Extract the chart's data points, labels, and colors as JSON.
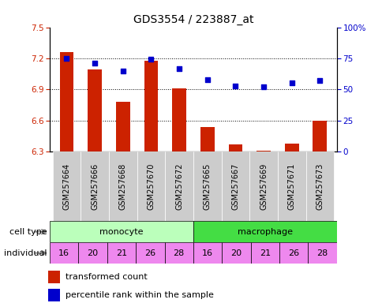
{
  "title": "GDS3554 / 223887_at",
  "samples": [
    "GSM257664",
    "GSM257666",
    "GSM257668",
    "GSM257670",
    "GSM257672",
    "GSM257665",
    "GSM257667",
    "GSM257669",
    "GSM257671",
    "GSM257673"
  ],
  "red_values": [
    7.26,
    7.09,
    6.78,
    7.18,
    6.91,
    6.54,
    6.37,
    6.31,
    6.38,
    6.6
  ],
  "blue_values": [
    75,
    71,
    65,
    74,
    67,
    58,
    53,
    52,
    55,
    57
  ],
  "ylim_left": [
    6.3,
    7.5
  ],
  "ylim_right": [
    0,
    100
  ],
  "yticks_left": [
    6.3,
    6.6,
    6.9,
    7.2,
    7.5
  ],
  "yticks_right": [
    0,
    25,
    50,
    75,
    100
  ],
  "ytick_labels_right": [
    "0",
    "25",
    "50",
    "75",
    "100%"
  ],
  "individuals": [
    "16",
    "20",
    "21",
    "26",
    "28",
    "16",
    "20",
    "21",
    "26",
    "28"
  ],
  "bar_color": "#cc2200",
  "dot_color": "#0000cc",
  "monocyte_color": "#bbffbb",
  "macrophage_color": "#44dd44",
  "individual_color": "#ee88ee",
  "sample_bg_color": "#cccccc",
  "title_fontsize": 10,
  "tick_fontsize": 7.5,
  "label_fontsize": 8,
  "bar_width": 0.5
}
